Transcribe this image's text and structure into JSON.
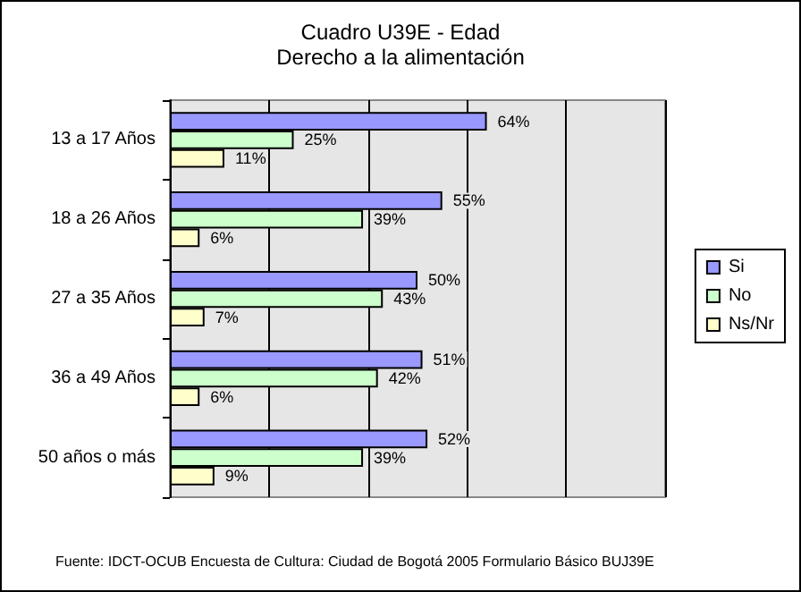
{
  "chart_data": {
    "type": "bar",
    "orientation": "horizontal",
    "title": "Cuadro U39E - Edad",
    "subtitle": "Derecho a la alimentación",
    "categories": [
      "13 a 17 Años",
      "18 a 26 Años",
      "27 a 35 Años",
      "36 a 49 Años",
      "50 años o más"
    ],
    "series": [
      {
        "name": "Si",
        "color": "#9999ff",
        "values": [
          64,
          55,
          50,
          51,
          52
        ],
        "value_labels": [
          "64%",
          "55%",
          "50%",
          "51%",
          "52%"
        ]
      },
      {
        "name": "No",
        "color": "#ccffcc",
        "values": [
          25,
          39,
          43,
          42,
          39
        ],
        "value_labels": [
          "25%",
          "39%",
          "43%",
          "42%",
          "39%"
        ]
      },
      {
        "name": "Ns/Nr",
        "color": "#ffffcc",
        "values": [
          11,
          6,
          7,
          6,
          9
        ],
        "value_labels": [
          "11%",
          "6%",
          "7%",
          "6%",
          "9%"
        ]
      }
    ],
    "xlim": [
      0,
      100
    ],
    "xticks": [
      {
        "value": 0,
        "label": null
      },
      {
        "value": 20,
        "label": null
      },
      {
        "value": 40,
        "label": null
      },
      {
        "value": 60,
        "label": null
      },
      {
        "value": 80,
        "label": null
      },
      {
        "value": 100,
        "label": null
      }
    ],
    "grid": "x",
    "legend": "right",
    "tick_labels": "y",
    "annotations": [
      "Fuente: IDCT-OCUB Encuesta de Cultura: Ciudad de Bogotá 2005 Formulario Básico BUJ39E"
    ]
  }
}
